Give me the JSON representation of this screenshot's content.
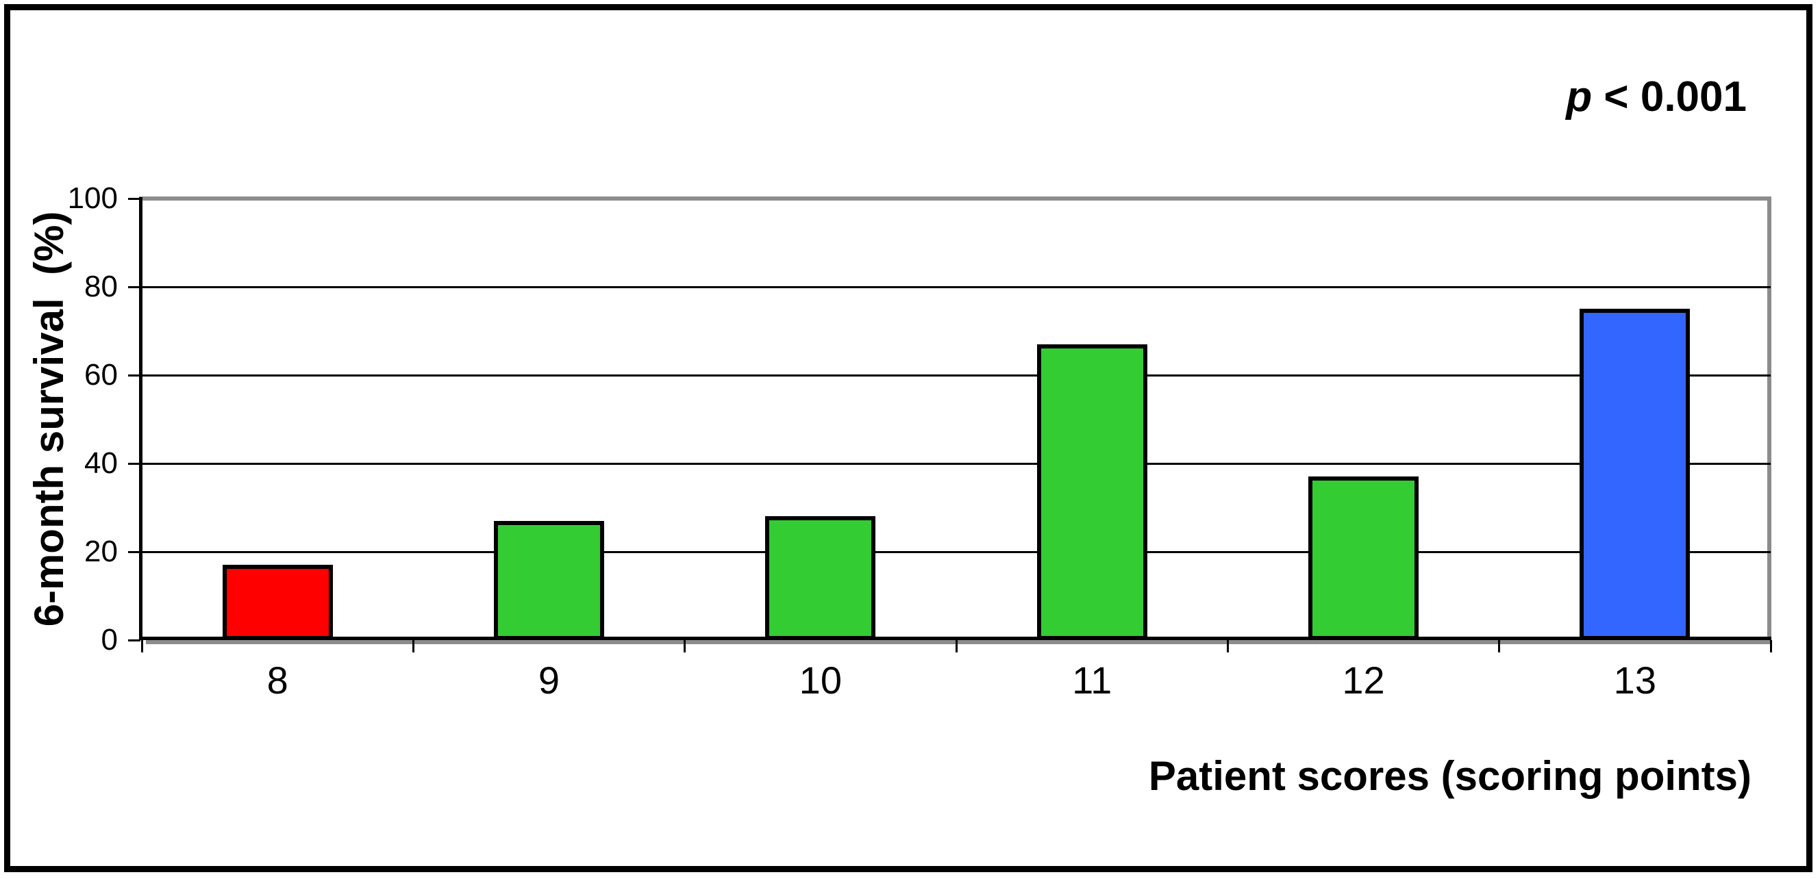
{
  "chart_data": {
    "type": "bar",
    "categories": [
      "8",
      "9",
      "10",
      "11",
      "12",
      "13"
    ],
    "values": [
      17,
      27,
      28,
      67,
      37,
      75
    ],
    "series": [
      {
        "name": "6-month survival",
        "values": [
          17,
          27,
          28,
          67,
          37,
          75
        ]
      }
    ],
    "bar_colors": [
      "#FF0000",
      "#33CC33",
      "#33CC33",
      "#33CC33",
      "#33CC33",
      "#3366FF"
    ],
    "title": "",
    "xlabel": "Patient scores (scoring points)",
    "ylabel": "6-month survival  (%)",
    "ylim": [
      0,
      100
    ],
    "yticks": [
      0,
      20,
      40,
      60,
      80,
      100
    ],
    "ytick_labels": [
      "0",
      "20",
      "40",
      "60",
      "80",
      "100"
    ],
    "grid": "horizontal",
    "legend_position": "none",
    "annotation": {
      "symbol": "p",
      "comparison": "< 0.001"
    }
  },
  "styles": {
    "background": "#FFFFFF",
    "outer_border": "#000000",
    "bar_border": "#000000",
    "gridline": "#000000",
    "frame_shadow": "#8C8C8C",
    "text": "#000000",
    "red_bar": "#FF0000",
    "green_bar": "#33CC33",
    "blue_bar": "#3366FF"
  }
}
